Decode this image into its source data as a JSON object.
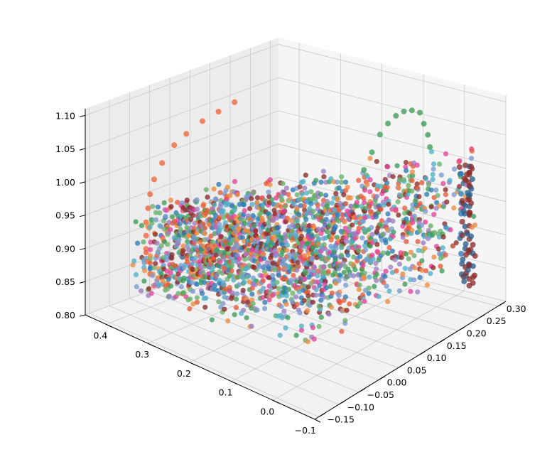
{
  "chart_data": {
    "type": "scatter3d",
    "title": "",
    "xlabel": "",
    "ylabel": "",
    "zlabel": "",
    "grid": true,
    "legend": "none",
    "x_axis": {
      "ticks": [
        -0.1,
        0.0,
        0.1,
        0.2,
        0.3,
        0.4
      ],
      "tick_labels": [
        "−0.1",
        "0.0",
        "0.1",
        "0.2",
        "0.3",
        "0.4"
      ],
      "range": [
        -0.1,
        0.45
      ]
    },
    "y_axis": {
      "ticks": [
        -0.15,
        -0.1,
        -0.05,
        0.0,
        0.05,
        0.1,
        0.15,
        0.2,
        0.25,
        0.3
      ],
      "tick_labels": [
        "−0.15",
        "−0.10",
        "−0.05",
        "0.00",
        "0.05",
        "0.10",
        "0.15",
        "0.20",
        "0.25",
        "0.30"
      ],
      "range": [
        -0.16,
        0.32
      ]
    },
    "z_axis": {
      "ticks": [
        0.8,
        0.85,
        0.9,
        0.95,
        1.0,
        1.05,
        1.1
      ],
      "tick_labels": [
        "0.80",
        "0.85",
        "0.90",
        "0.95",
        "1.00",
        "1.05",
        "1.10"
      ],
      "range": [
        0.8,
        1.11
      ]
    },
    "palette": [
      "#e8593a",
      "#f08a3e",
      "#3e9c5a",
      "#2b7bb9",
      "#9b7fc4",
      "#e6439a",
      "#4fb0c6",
      "#8c2b2b",
      "#6ab06a",
      "#7a9ad0"
    ],
    "series": [
      {
        "color": "#f0653a",
        "points": [
          [
            0.42,
            -0.02,
            0.82
          ],
          [
            0.42,
            -0.03,
            0.84
          ],
          [
            0.42,
            -0.035,
            0.86
          ],
          [
            0.42,
            -0.04,
            0.88
          ],
          [
            0.42,
            -0.04,
            0.9
          ],
          [
            0.42,
            -0.04,
            0.92
          ],
          [
            0.42,
            -0.035,
            0.94
          ],
          [
            0.42,
            -0.03,
            0.96
          ],
          [
            0.42,
            -0.02,
            0.98
          ],
          [
            0.42,
            0.0,
            1.0
          ],
          [
            0.42,
            0.03,
            1.02
          ],
          [
            0.42,
            0.06,
            1.03
          ],
          [
            0.42,
            0.1,
            1.04
          ],
          [
            0.42,
            0.14,
            1.045
          ],
          [
            0.42,
            0.18,
            1.05
          ]
        ]
      },
      {
        "color": "#3e9c5a",
        "points": [
          [
            0.05,
            0.12,
            1.04
          ],
          [
            0.05,
            0.14,
            1.06
          ],
          [
            0.05,
            0.16,
            1.08
          ],
          [
            0.05,
            0.18,
            1.09
          ],
          [
            0.05,
            0.2,
            1.095
          ],
          [
            0.05,
            0.22,
            1.095
          ],
          [
            0.05,
            0.24,
            1.09
          ],
          [
            0.05,
            0.26,
            1.08
          ],
          [
            0.05,
            0.27,
            1.06
          ],
          [
            0.05,
            0.28,
            1.04
          ],
          [
            0.05,
            0.285,
            1.02
          ]
        ]
      },
      {
        "color": "#8c2b2b",
        "points": [
          [
            -0.05,
            0.28,
            1.0
          ],
          [
            -0.05,
            0.28,
            0.98
          ],
          [
            -0.05,
            0.28,
            0.96
          ],
          [
            -0.05,
            0.28,
            0.94
          ],
          [
            -0.05,
            0.28,
            0.92
          ],
          [
            -0.05,
            0.28,
            0.9
          ],
          [
            -0.05,
            0.28,
            0.88
          ],
          [
            -0.05,
            0.28,
            0.86
          ],
          [
            -0.05,
            0.28,
            0.84
          ],
          [
            -0.05,
            0.28,
            0.83
          ]
        ]
      },
      {
        "color": "#2b7bb9",
        "points": [
          [
            -0.04,
            0.27,
            1.0
          ],
          [
            -0.04,
            0.27,
            0.97
          ],
          [
            -0.04,
            0.27,
            0.94
          ],
          [
            -0.04,
            0.27,
            0.91
          ],
          [
            -0.04,
            0.27,
            0.88
          ],
          [
            0.0,
            0.2,
            0.97
          ],
          [
            0.05,
            0.15,
            0.96
          ],
          [
            0.1,
            0.1,
            0.95
          ]
        ]
      }
    ],
    "cloud": {
      "description_free": true,
      "x_range": [
        -0.05,
        0.4
      ],
      "y_range": [
        -0.12,
        0.3
      ],
      "z_range": [
        0.82,
        1.05
      ],
      "approx_point_count": 2200
    }
  }
}
